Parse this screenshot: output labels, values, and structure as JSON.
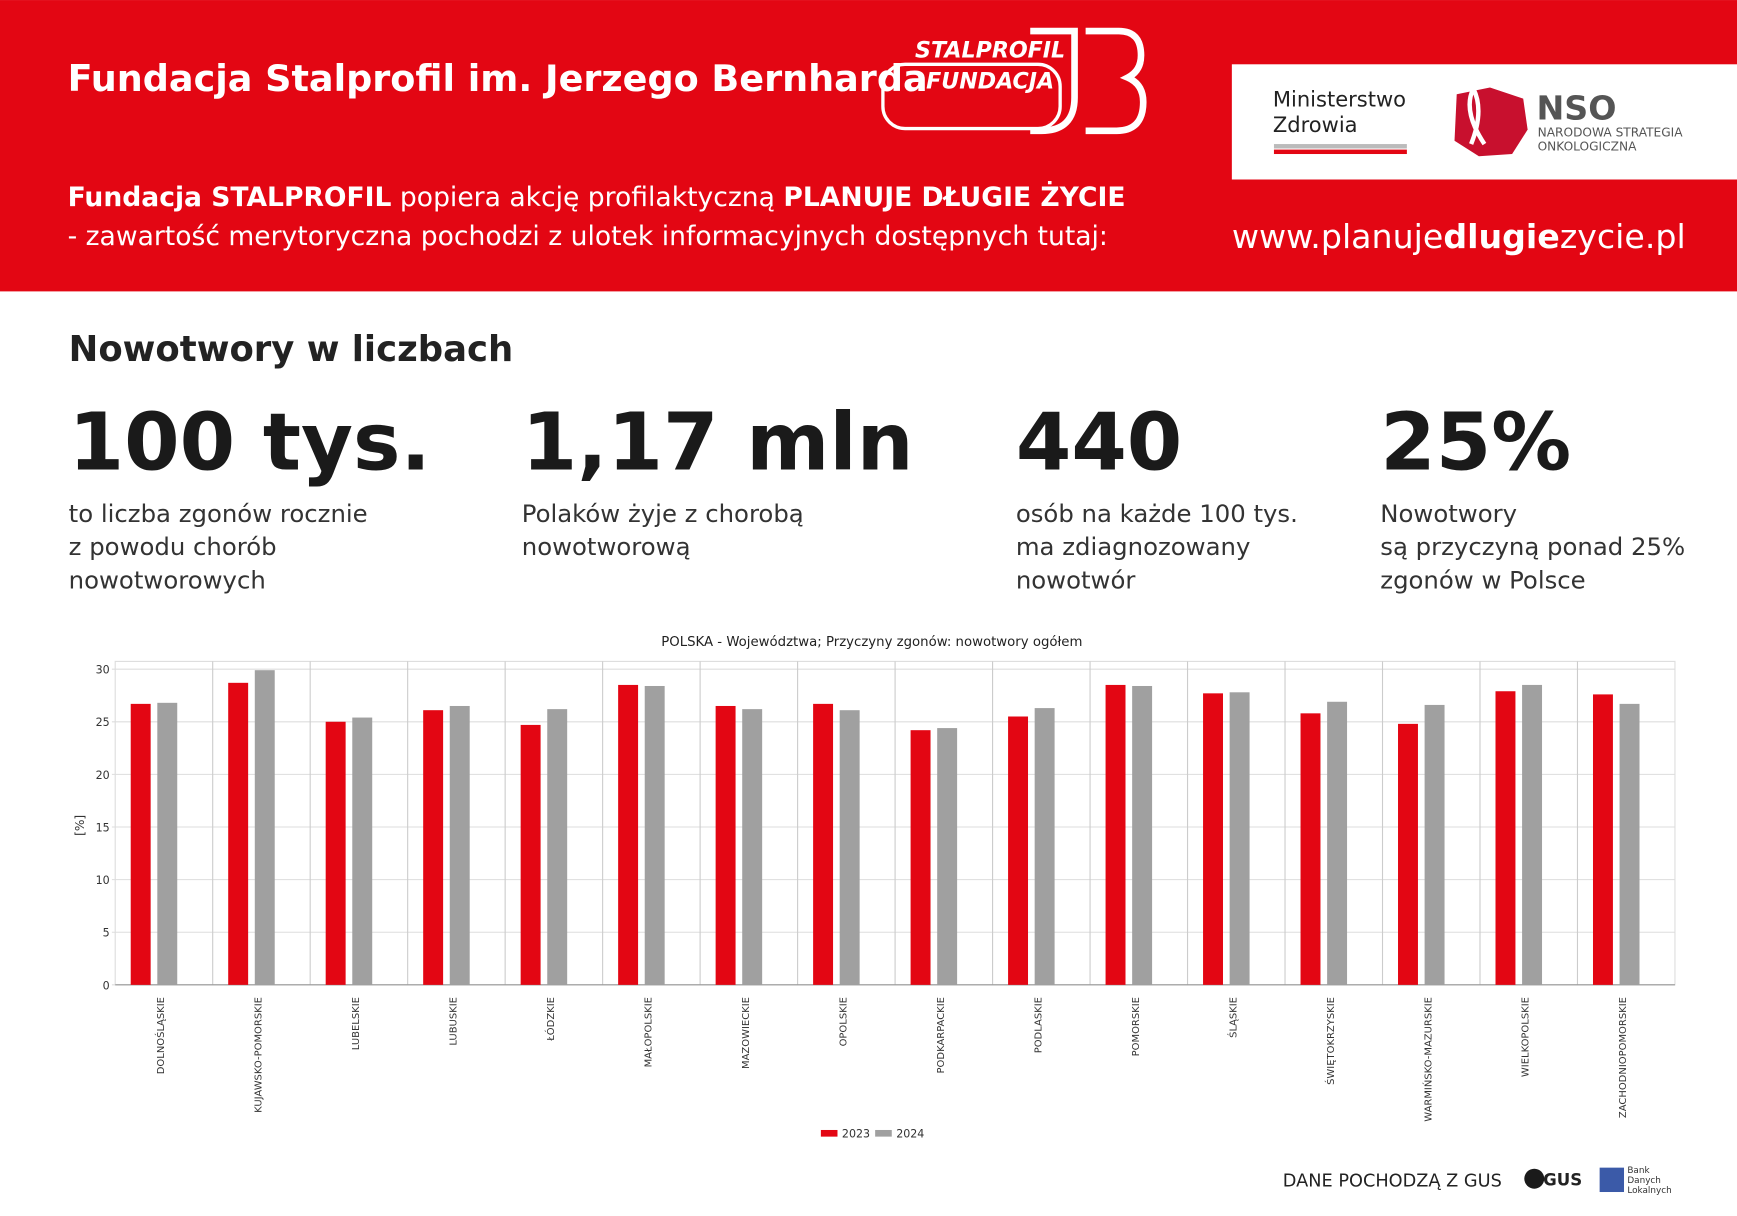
{
  "header": {
    "title": "Fundacja Stalprofil  im. Jerzego Bernharda",
    "logo_line1": "STALPROFIL",
    "logo_line2": "FUNDACJA",
    "ministry_line1": "Ministerstwo",
    "ministry_line2": "Zdrowia",
    "nso": "NSO",
    "nso_line1": "NARODOWA STRATEGIA",
    "nso_line2": "ONKOLOGICZNA",
    "tagline_parts": [
      "Fundacja STALPROFIL",
      " popiera akcję profilaktyczną ",
      "PLANUJE DŁUGIE ŻYCIE"
    ],
    "tagline_line2": "- zawartość merytoryczna pochodzi z ulotek informacyjnych dostępnych tutaj:",
    "url_parts": [
      "www.planuje",
      "dlugie",
      "zycie.pl"
    ]
  },
  "stats": {
    "heading": "Nowotwory w liczbach",
    "items": [
      {
        "value": "100 tys.",
        "lines": [
          "to liczba zgonów rocznie",
          "z powodu chorób",
          "nowotworowych"
        ]
      },
      {
        "value": "1,17 mln",
        "lines": [
          "Polaków żyje z chorobą",
          "nowotworową"
        ]
      },
      {
        "value": "440",
        "lines": [
          "osób na każde 100 tys.",
          "ma zdiagnozowany",
          "nowotwór"
        ]
      },
      {
        "value": "25%",
        "lines": [
          "Nowotwory",
          "są przyczyną ponad 25%",
          "zgonów w Polsce"
        ]
      }
    ]
  },
  "chart_data": {
    "type": "bar",
    "title": "POLSKA - Województwa; Przyczyny zgonów: nowotwory ogółem",
    "y_label": "[%]",
    "categories": [
      "DOLNOŚLĄSKIE",
      "KUJAWSKO-POMORSKIE",
      "LUBELSKIE",
      "LUBUSKIE",
      "ŁÓDZKIE",
      "MAŁOPOLSKIE",
      "MAZOWIECKIE",
      "OPOLSKIE",
      "PODKARPACKIE",
      "PODLASKIE",
      "POMORSKIE",
      "ŚLĄSKIE",
      "ŚWIĘTOKRZYSKIE",
      "WARMIŃSKO-MAZURSKIE",
      "WIELKOPOLSKIE",
      "ZACHODNIOPOMORSKIE"
    ],
    "series": [
      {
        "name": "2023",
        "color": "#e30613",
        "values": [
          26.7,
          28.7,
          25.0,
          26.1,
          24.7,
          28.5,
          26.5,
          26.7,
          24.2,
          25.5,
          28.5,
          27.7,
          25.8,
          24.8,
          27.9,
          27.6
        ]
      },
      {
        "name": "2024",
        "color": "#a0a0a0",
        "values": [
          26.8,
          29.9,
          25.4,
          26.5,
          26.2,
          28.4,
          26.2,
          26.1,
          24.4,
          26.3,
          28.4,
          27.8,
          26.9,
          26.6,
          28.5,
          26.7
        ]
      }
    ],
    "ylim": [
      0,
      30
    ],
    "yticks": [
      0,
      5,
      10,
      15,
      20,
      25,
      30
    ],
    "grid": true
  },
  "footer": {
    "source": "DANE POCHODZĄ Z GUS",
    "gus": "GUS",
    "bdl_lines": [
      "Bank",
      "Danych",
      "Lokalnych"
    ]
  }
}
